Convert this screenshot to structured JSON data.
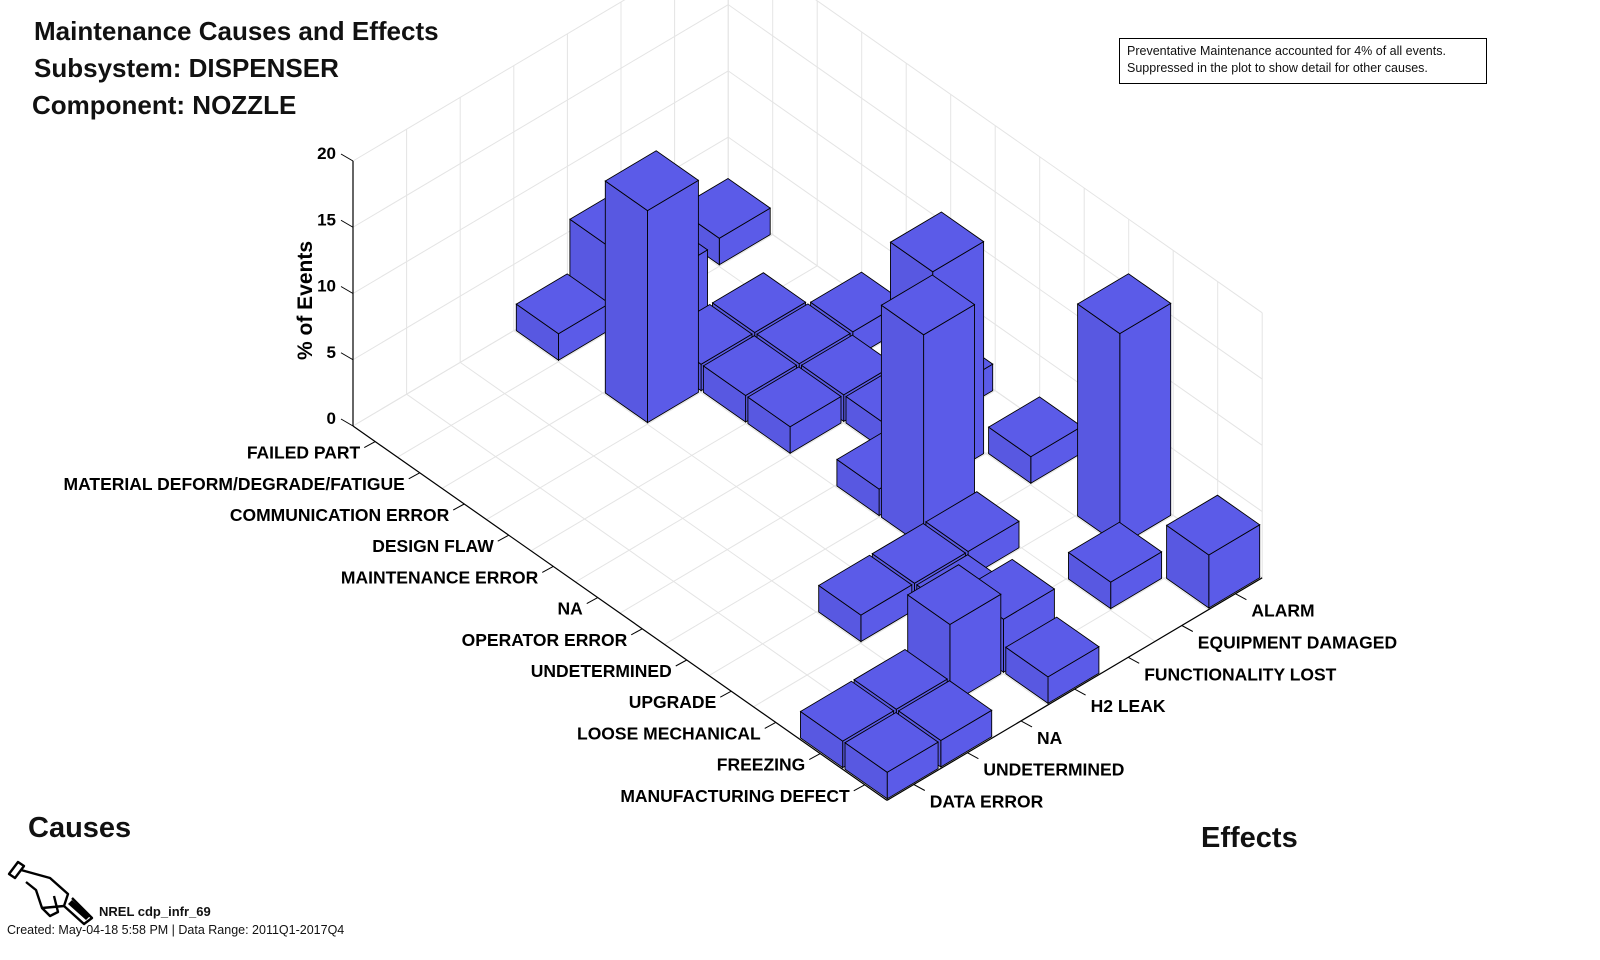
{
  "titles": {
    "line1": "Maintenance Causes and Effects",
    "line2": "Subsystem: DISPENSER",
    "line3": "Component: NOZZLE"
  },
  "note": {
    "line1": "Preventative Maintenance accounted for 4% of all events.",
    "line2": "Suppressed in the plot to show detail for other causes."
  },
  "footer": {
    "source": "NREL cdp_infr_69",
    "created": "Created: May-04-18  5:58 PM | Data Range: 2011Q1-2017Q4"
  },
  "chart_data": {
    "type": "bar3d",
    "title": "Maintenance Causes and Effects",
    "xlabel": "Causes",
    "ylabel": "Effects",
    "zlabel": "% of Events",
    "zlim": [
      0,
      20
    ],
    "zticks": [
      0,
      5,
      10,
      15,
      20
    ],
    "bar_color": "#5b5be8",
    "causes": [
      "FAILED PART",
      "MATERIAL DEFORM/DEGRADE/FATIGUE",
      "COMMUNICATION ERROR",
      "DESIGN FLAW",
      "MAINTENANCE ERROR",
      "NA",
      "OPERATOR ERROR",
      "UNDETERMINED",
      "UPGRADE",
      "LOOSE MECHANICAL",
      "FREEZING",
      "MANUFACTURING DEFECT"
    ],
    "effects": [
      "ALARM",
      "EQUIPMENT DAMAGED",
      "FUNCTIONALITY LOST",
      "H2 LEAK",
      "NA",
      "UNDETERMINED",
      "DATA ERROR"
    ],
    "bars": [
      {
        "cause": "FAILED PART",
        "effect": "ALARM",
        "value": 2.0
      },
      {
        "cause": "FAILED PART",
        "effect": "FUNCTIONALITY LOST",
        "value": 6.0
      },
      {
        "cause": "FAILED PART",
        "effect": "H2 LEAK",
        "value": 2.0
      },
      {
        "cause": "MATERIAL DEFORM/DEGRADE/FATIGUE",
        "effect": "FUNCTIONALITY LOST",
        "value": 6.0
      },
      {
        "cause": "COMMUNICATION ERROR",
        "effect": "EQUIPMENT DAMAGED",
        "value": 2.0
      },
      {
        "cause": "COMMUNICATION ERROR",
        "effect": "FUNCTIONALITY LOST",
        "value": 2.0
      },
      {
        "cause": "COMMUNICATION ERROR",
        "effect": "H2 LEAK",
        "value": 16.0
      },
      {
        "cause": "DESIGN FLAW",
        "effect": "ALARM",
        "value": 2.0
      },
      {
        "cause": "DESIGN FLAW",
        "effect": "EQUIPMENT DAMAGED",
        "value": 2.0
      },
      {
        "cause": "DESIGN FLAW",
        "effect": "FUNCTIONALITY LOST",
        "value": 2.0
      },
      {
        "cause": "MAINTENANCE ERROR",
        "effect": "EQUIPMENT DAMAGED",
        "value": 2.0
      },
      {
        "cause": "MAINTENANCE ERROR",
        "effect": "FUNCTIONALITY LOST",
        "value": 2.0
      },
      {
        "cause": "NA",
        "effect": "ALARM",
        "value": 2.0
      },
      {
        "cause": "NA",
        "effect": "EQUIPMENT DAMAGED",
        "value": 2.0
      },
      {
        "cause": "OPERATOR ERROR",
        "effect": "EQUIPMENT DAMAGED",
        "value": 16.0
      },
      {
        "cause": "OPERATOR ERROR",
        "effect": "FUNCTIONALITY LOST",
        "value": 2.0
      },
      {
        "cause": "UNDETERMINED",
        "effect": "ALARM",
        "value": 2.0
      },
      {
        "cause": "UNDETERMINED",
        "effect": "FUNCTIONALITY LOST",
        "value": 16.0
      },
      {
        "cause": "UPGRADE",
        "effect": "FUNCTIONALITY LOST",
        "value": 2.0
      },
      {
        "cause": "UPGRADE",
        "effect": "H2 LEAK",
        "value": 2.0
      },
      {
        "cause": "UPGRADE",
        "effect": "NA",
        "value": 2.0
      },
      {
        "cause": "LOOSE MECHANICAL",
        "effect": "ALARM",
        "value": 16.0
      },
      {
        "cause": "LOOSE MECHANICAL",
        "effect": "H2 LEAK",
        "value": 2.0
      },
      {
        "cause": "FREEZING",
        "effect": "EQUIPMENT DAMAGED",
        "value": 2.0
      },
      {
        "cause": "FREEZING",
        "effect": "H2 LEAK",
        "value": 4.0
      },
      {
        "cause": "FREEZING",
        "effect": "NA",
        "value": 6.0
      },
      {
        "cause": "FREEZING",
        "effect": "UNDETERMINED",
        "value": 2.0
      },
      {
        "cause": "FREEZING",
        "effect": "DATA ERROR",
        "value": 2.0
      },
      {
        "cause": "MANUFACTURING DEFECT",
        "effect": "ALARM",
        "value": 4.0
      },
      {
        "cause": "MANUFACTURING DEFECT",
        "effect": "H2 LEAK",
        "value": 2.0
      },
      {
        "cause": "MANUFACTURING DEFECT",
        "effect": "UNDETERMINED",
        "value": 2.0
      },
      {
        "cause": "MANUFACTURING DEFECT",
        "effect": "DATA ERROR",
        "value": 2.0
      }
    ]
  }
}
